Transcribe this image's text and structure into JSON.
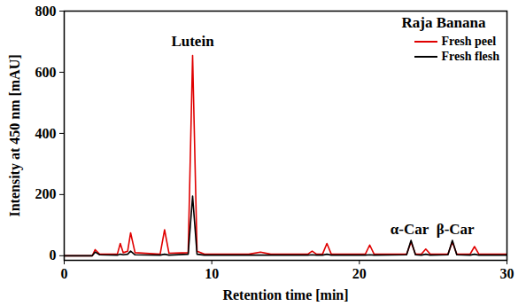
{
  "chart_data": {
    "type": "line",
    "x_label": "Retention time [min]",
    "y_label": "Intensity at 450 nm [mAU]",
    "legend_title": "Raja Banana",
    "legend": "upper right",
    "xlim": [
      0,
      30
    ],
    "xticks": [
      0,
      10,
      20,
      30
    ],
    "ylim": [
      -15,
      800
    ],
    "yticks": [
      0,
      200,
      400,
      600,
      800
    ],
    "x": [
      0,
      1.9,
      2.1,
      2.4,
      3.6,
      3.8,
      4.0,
      4.3,
      4.5,
      4.8,
      6.5,
      6.8,
      7.1,
      8.4,
      8.7,
      9.0,
      9.5,
      12.5,
      13.3,
      14.0,
      16.5,
      16.8,
      17.1,
      17.5,
      17.8,
      18.1,
      20.4,
      20.7,
      21.0,
      23.2,
      23.5,
      23.8,
      24.2,
      24.5,
      24.8,
      26.0,
      26.3,
      26.6,
      27.5,
      27.8,
      28.1,
      30
    ],
    "series": [
      {
        "name": "Fresh peel",
        "color": "#e00000",
        "values": [
          0,
          0,
          20,
          5,
          5,
          40,
          10,
          15,
          75,
          10,
          5,
          85,
          8,
          10,
          655,
          15,
          5,
          5,
          12,
          5,
          5,
          15,
          5,
          5,
          40,
          5,
          5,
          35,
          5,
          5,
          45,
          5,
          5,
          22,
          5,
          5,
          45,
          5,
          5,
          30,
          5,
          5
        ]
      },
      {
        "name": "Fresh flesh",
        "color": "#000000",
        "values": [
          0,
          0,
          12,
          3,
          2,
          5,
          3,
          5,
          15,
          3,
          2,
          5,
          2,
          5,
          195,
          5,
          2,
          2,
          2,
          2,
          2,
          3,
          2,
          2,
          5,
          2,
          2,
          3,
          2,
          3,
          50,
          3,
          2,
          5,
          2,
          3,
          50,
          3,
          2,
          5,
          2,
          2
        ]
      }
    ],
    "annotations": [
      {
        "text": "Lutein",
        "x": 8.7,
        "y": 700
      },
      {
        "text": "α-Car",
        "x": 23.4,
        "y": 85
      },
      {
        "text": "β-Car",
        "x": 26.5,
        "y": 85
      }
    ]
  }
}
